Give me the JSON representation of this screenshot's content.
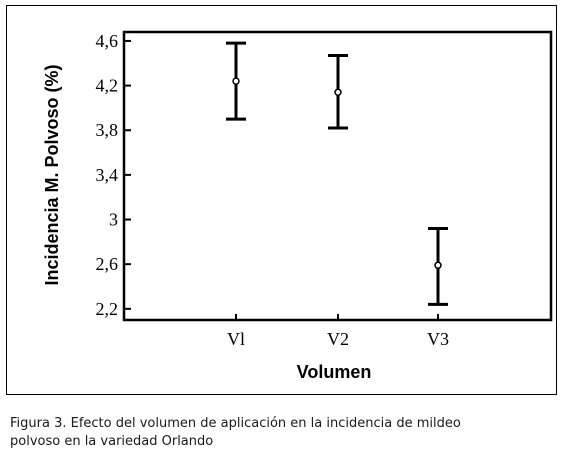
{
  "caption": {
    "line1": "Figura 3. Efecto del volumen de aplicación en la incidencia de mildeo",
    "line2": "polvoso en la variedad Orlando"
  },
  "chart_data": {
    "type": "scatter",
    "subtype": "means with error bars",
    "xlabel": "Volumen",
    "ylabel": "Incidencia M. Polvoso (%)",
    "categories": [
      "Vl",
      "V2",
      "V3"
    ],
    "means": [
      4.24,
      4.14,
      2.59
    ],
    "lower": [
      3.9,
      3.82,
      2.24
    ],
    "upper": [
      4.58,
      4.47,
      2.92
    ],
    "ylim": [
      2.1,
      4.68
    ],
    "yticks": [
      2.2,
      2.6,
      3,
      3.4,
      3.8,
      4.2,
      4.6
    ],
    "ytick_labels": [
      "2,2",
      "2,6",
      "3",
      "3,4",
      "3,8",
      "4,2",
      "4,6"
    ],
    "grid": false,
    "colors": {
      "marks": "#000000",
      "axes": "#000000"
    }
  }
}
